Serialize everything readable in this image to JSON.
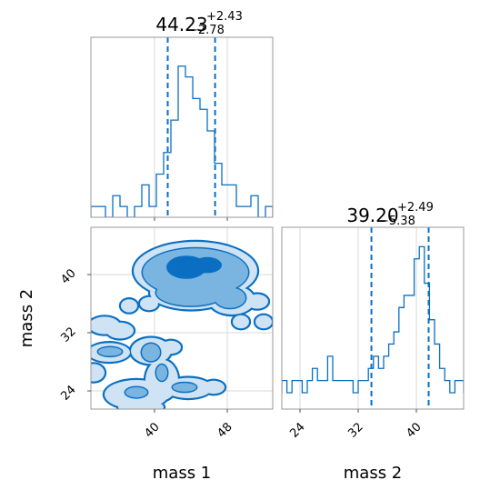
{
  "chart_data": [
    {
      "type": "histogram",
      "panel": "top-left",
      "title": {
        "value": "44.23",
        "plus": "+2.43",
        "minus": "−2.78"
      },
      "x_range": [
        33.0,
        53.0
      ],
      "quantile_lines": [
        41.45,
        46.66
      ],
      "median": 44.23,
      "grid": true,
      "bins": [
        {
          "x0": 33.0,
          "x1": 33.8,
          "h": 1
        },
        {
          "x0": 33.8,
          "x1": 34.6,
          "h": 1
        },
        {
          "x0": 34.6,
          "x1": 35.4,
          "h": 0
        },
        {
          "x0": 35.4,
          "x1": 36.2,
          "h": 2
        },
        {
          "x0": 36.2,
          "x1": 37.0,
          "h": 1
        },
        {
          "x0": 37.0,
          "x1": 37.8,
          "h": 0
        },
        {
          "x0": 37.8,
          "x1": 38.6,
          "h": 1
        },
        {
          "x0": 38.6,
          "x1": 39.4,
          "h": 3
        },
        {
          "x0": 39.4,
          "x1": 40.2,
          "h": 1
        },
        {
          "x0": 40.2,
          "x1": 41.0,
          "h": 4
        },
        {
          "x0": 41.0,
          "x1": 41.8,
          "h": 6
        },
        {
          "x0": 41.8,
          "x1": 42.6,
          "h": 9
        },
        {
          "x0": 42.6,
          "x1": 43.4,
          "h": 14
        },
        {
          "x0": 43.4,
          "x1": 44.2,
          "h": 13
        },
        {
          "x0": 44.2,
          "x1": 45.0,
          "h": 11
        },
        {
          "x0": 45.0,
          "x1": 45.8,
          "h": 10
        },
        {
          "x0": 45.8,
          "x1": 46.6,
          "h": 8
        },
        {
          "x0": 46.6,
          "x1": 47.4,
          "h": 5
        },
        {
          "x0": 47.4,
          "x1": 48.2,
          "h": 3
        },
        {
          "x0": 48.2,
          "x1": 49.0,
          "h": 3
        },
        {
          "x0": 49.0,
          "x1": 49.8,
          "h": 1
        },
        {
          "x0": 49.8,
          "x1": 50.6,
          "h": 1
        },
        {
          "x0": 50.6,
          "x1": 51.4,
          "h": 2
        },
        {
          "x0": 51.4,
          "x1": 52.2,
          "h": 0
        },
        {
          "x0": 52.2,
          "x1": 53.0,
          "h": 1
        }
      ],
      "h_max": 16
    },
    {
      "type": "contour",
      "panel": "bottom-left",
      "x_range": [
        33.0,
        53.0
      ],
      "y_range": [
        21.5,
        46.5
      ],
      "xlabel": "mass 1",
      "ylabel": "mass 2",
      "x_ticks": [
        40,
        48
      ],
      "y_ticks": [
        24,
        32,
        40
      ],
      "grid": true,
      "colors": {
        "outer": "#cfe3f4",
        "mid": "#7ab4e0",
        "inner": "#0a6fc2",
        "line": "#0a6fc2"
      },
      "outer_regions": [
        {
          "cx": 44.5,
          "cy": 40.5,
          "rx": 6.8,
          "ry": 4.0
        },
        {
          "cx": 44.0,
          "cy": 37.5,
          "rx": 4.5,
          "ry": 2.3
        },
        {
          "cx": 48.5,
          "cy": 36.5,
          "rx": 2.5,
          "ry": 2.0
        },
        {
          "cx": 51.3,
          "cy": 36.3,
          "rx": 1.2,
          "ry": 1.0
        },
        {
          "cx": 37.2,
          "cy": 35.7,
          "rx": 0.9,
          "ry": 0.9
        },
        {
          "cx": 39.4,
          "cy": 36.0,
          "rx": 1.0,
          "ry": 0.9
        },
        {
          "cx": 34.5,
          "cy": 33.0,
          "rx": 1.7,
          "ry": 1.2
        },
        {
          "cx": 36.2,
          "cy": 32.3,
          "rx": 1.5,
          "ry": 1.1
        },
        {
          "cx": 39.6,
          "cy": 29.5,
          "rx": 2.2,
          "ry": 1.8
        },
        {
          "cx": 35.0,
          "cy": 29.3,
          "rx": 2.3,
          "ry": 1.3
        },
        {
          "cx": 33.3,
          "cy": 26.5,
          "rx": 1.2,
          "ry": 1.2
        },
        {
          "cx": 40.8,
          "cy": 25.5,
          "rx": 1.8,
          "ry": 2.8
        },
        {
          "cx": 38.0,
          "cy": 23.5,
          "rx": 3.5,
          "ry": 2.0
        },
        {
          "cx": 43.7,
          "cy": 24.4,
          "rx": 2.6,
          "ry": 1.4
        },
        {
          "cx": 46.5,
          "cy": 24.5,
          "rx": 1.2,
          "ry": 0.9
        },
        {
          "cx": 41.8,
          "cy": 30.0,
          "rx": 1.1,
          "ry": 0.9
        },
        {
          "cx": 49.5,
          "cy": 33.5,
          "rx": 0.9,
          "ry": 0.9
        },
        {
          "cx": 52.0,
          "cy": 33.5,
          "rx": 0.9,
          "ry": 0.9
        },
        {
          "cx": 38.5,
          "cy": 21.8,
          "rx": 2.5,
          "ry": 0.9
        }
      ],
      "mid_regions": [
        {
          "cx": 44.5,
          "cy": 40.3,
          "rx": 5.8,
          "ry": 3.3
        },
        {
          "cx": 44.0,
          "cy": 37.5,
          "rx": 3.8,
          "ry": 1.8
        },
        {
          "cx": 48.3,
          "cy": 36.8,
          "rx": 1.7,
          "ry": 1.4
        },
        {
          "cx": 39.6,
          "cy": 29.3,
          "rx": 1.0,
          "ry": 1.2
        },
        {
          "cx": 35.1,
          "cy": 29.4,
          "rx": 1.3,
          "ry": 0.6
        },
        {
          "cx": 38.0,
          "cy": 23.8,
          "rx": 1.2,
          "ry": 0.7
        },
        {
          "cx": 43.3,
          "cy": 24.5,
          "rx": 1.3,
          "ry": 0.6
        },
        {
          "cx": 40.8,
          "cy": 26.5,
          "rx": 0.6,
          "ry": 1.1
        }
      ],
      "inner_regions": [
        {
          "cx": 43.5,
          "cy": 41.0,
          "rx": 2.2,
          "ry": 1.6
        },
        {
          "cx": 45.8,
          "cy": 41.3,
          "rx": 1.6,
          "ry": 1.1
        }
      ]
    },
    {
      "type": "histogram",
      "panel": "bottom-right",
      "title": {
        "value": "39.20",
        "plus": "+2.49",
        "minus": "−5.38"
      },
      "x_range": [
        21.5,
        46.5
      ],
      "xlabel": "mass 2",
      "x_ticks": [
        24,
        32,
        40
      ],
      "quantile_lines": [
        33.82,
        41.69
      ],
      "median": 39.2,
      "grid": true,
      "bins": [
        {
          "x0": 21.5,
          "x1": 22.2,
          "h": 1
        },
        {
          "x0": 22.2,
          "x1": 22.9,
          "h": 0
        },
        {
          "x0": 22.9,
          "x1": 23.6,
          "h": 1
        },
        {
          "x0": 23.6,
          "x1": 24.3,
          "h": 1
        },
        {
          "x0": 24.3,
          "x1": 25.0,
          "h": 0
        },
        {
          "x0": 25.0,
          "x1": 25.7,
          "h": 1
        },
        {
          "x0": 25.7,
          "x1": 26.4,
          "h": 2
        },
        {
          "x0": 26.4,
          "x1": 27.1,
          "h": 1
        },
        {
          "x0": 27.1,
          "x1": 27.8,
          "h": 1
        },
        {
          "x0": 27.8,
          "x1": 28.5,
          "h": 3
        },
        {
          "x0": 28.5,
          "x1": 29.2,
          "h": 1
        },
        {
          "x0": 29.2,
          "x1": 29.9,
          "h": 1
        },
        {
          "x0": 29.9,
          "x1": 30.6,
          "h": 1
        },
        {
          "x0": 30.6,
          "x1": 31.3,
          "h": 1
        },
        {
          "x0": 31.3,
          "x1": 32.0,
          "h": 0
        },
        {
          "x0": 32.0,
          "x1": 32.7,
          "h": 1
        },
        {
          "x0": 32.7,
          "x1": 33.4,
          "h": 1
        },
        {
          "x0": 33.4,
          "x1": 34.1,
          "h": 2
        },
        {
          "x0": 34.1,
          "x1": 34.8,
          "h": 3
        },
        {
          "x0": 34.8,
          "x1": 35.5,
          "h": 2
        },
        {
          "x0": 35.5,
          "x1": 36.2,
          "h": 3
        },
        {
          "x0": 36.2,
          "x1": 36.9,
          "h": 4
        },
        {
          "x0": 36.9,
          "x1": 37.6,
          "h": 5
        },
        {
          "x0": 37.6,
          "x1": 38.3,
          "h": 7
        },
        {
          "x0": 38.3,
          "x1": 39.0,
          "h": 8
        },
        {
          "x0": 39.0,
          "x1": 39.7,
          "h": 8
        },
        {
          "x0": 39.7,
          "x1": 40.4,
          "h": 11
        },
        {
          "x0": 40.4,
          "x1": 41.1,
          "h": 12
        },
        {
          "x0": 41.1,
          "x1": 41.8,
          "h": 9
        },
        {
          "x0": 41.8,
          "x1": 42.5,
          "h": 6
        },
        {
          "x0": 42.5,
          "x1": 43.2,
          "h": 4
        },
        {
          "x0": 43.2,
          "x1": 43.9,
          "h": 2
        },
        {
          "x0": 43.9,
          "x1": 44.6,
          "h": 1
        },
        {
          "x0": 44.6,
          "x1": 45.3,
          "h": 0
        },
        {
          "x0": 45.3,
          "x1": 46.0,
          "h": 1
        },
        {
          "x0": 46.0,
          "x1": 46.5,
          "h": 1
        }
      ],
      "h_max": 13
    }
  ]
}
